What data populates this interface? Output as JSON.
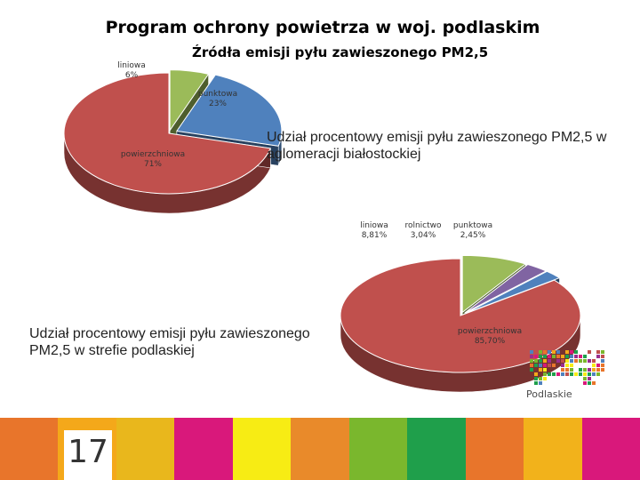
{
  "slide": {
    "title": "Program ochrony powietrza w woj. podlaskim",
    "page_number": "17"
  },
  "captions": {
    "chart2": "Udział procentowy emisji pyłu zawieszonego PM2,5 w aglomeracji białostockiej",
    "chart1": "Udział procentowy emisji pyłu zawieszonego PM2,5 w strefie podlaskiej"
  },
  "logo": {
    "text": "Podlaskie"
  },
  "footer": {
    "colors": [
      "#e8752b",
      "#f4a81a",
      "#e9b71c",
      "#d9187b",
      "#f7ec14",
      "#e98a2a",
      "#7ab72d",
      "#1f9f4b",
      "#e8752b",
      "#f2b21b",
      "#d9187b"
    ]
  },
  "chart_data": [
    {
      "type": "pie",
      "title": "Źródła emisji pyłu zawieszonego PM2,5",
      "slices": [
        {
          "label": "liniowa",
          "value_text": "6%",
          "value": 6,
          "color": "#9bbb59"
        },
        {
          "label": "punktowa",
          "value_text": "23%",
          "value": 23,
          "color": "#4f81bd"
        },
        {
          "label": "powierzchniowa",
          "value_text": "71%",
          "value": 71,
          "color": "#c0504d"
        }
      ]
    },
    {
      "type": "pie",
      "slices": [
        {
          "label": "liniowa",
          "value_text": "8,81%",
          "value": 8.81,
          "color": "#9bbb59"
        },
        {
          "label": "rolnictwo",
          "value_text": "3,04%",
          "value": 3.04,
          "color": "#8064a2"
        },
        {
          "label": "punktowa",
          "value_text": "2,45%",
          "value": 2.45,
          "color": "#4f81bd"
        },
        {
          "label": "powierzchniowa",
          "value_text": "85,70%",
          "value": 85.7,
          "color": "#c0504d"
        }
      ]
    }
  ]
}
